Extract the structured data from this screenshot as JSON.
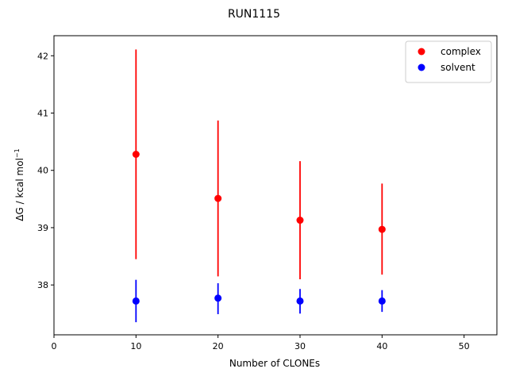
{
  "chart_data": {
    "type": "scatter",
    "title": "RUN1115",
    "xlabel": "Number of CLONEs",
    "ylabel": "ΔG / kcal mol",
    "ylabel_superscript": "−1",
    "xlim": [
      0,
      54
    ],
    "ylim": [
      37.13,
      42.35
    ],
    "xticks": [
      0,
      10,
      20,
      30,
      40,
      50
    ],
    "yticks": [
      38,
      39,
      40,
      41,
      42
    ],
    "grid": false,
    "legend_position": "top-right",
    "series": [
      {
        "name": "complex",
        "color": "#ff0000",
        "x": [
          10,
          20,
          30,
          40
        ],
        "y": [
          40.28,
          39.51,
          39.13,
          38.97
        ],
        "err_low": [
          38.45,
          38.15,
          38.1,
          38.18
        ],
        "err_high": [
          42.11,
          40.87,
          40.16,
          39.77
        ]
      },
      {
        "name": "solvent",
        "color": "#0000ff",
        "x": [
          10,
          20,
          30,
          40
        ],
        "y": [
          37.72,
          37.77,
          37.72,
          37.72
        ],
        "err_low": [
          37.35,
          37.49,
          37.5,
          37.53
        ],
        "err_high": [
          38.09,
          38.03,
          37.93,
          37.91
        ]
      }
    ]
  }
}
